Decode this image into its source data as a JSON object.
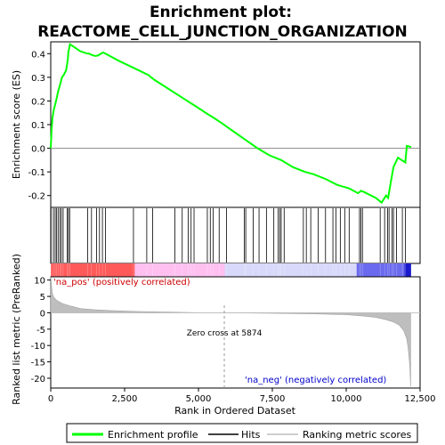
{
  "chart_data": {
    "type": "line",
    "title_line1": "Enrichment plot:",
    "title_line2": "REACTOME_CELL_JUNCTION_ORGANIZATION",
    "top_panel": {
      "ylabel": "Enrichment score (ES)",
      "ylim": [
        -0.25,
        0.45
      ],
      "yticks": [
        "0.4",
        "0.3",
        "0.2",
        "0.1",
        "0.0",
        "-0.1",
        "-0.2"
      ],
      "ytick_values": [
        0.4,
        0.3,
        0.2,
        0.1,
        0.0,
        -0.1,
        -0.2
      ],
      "series": [
        {
          "name": "Enrichment profile",
          "color": "#00ff00",
          "x": [
            0,
            30,
            60,
            100,
            180,
            250,
            320,
            380,
            440,
            520,
            560,
            580,
            600,
            620,
            650,
            1000,
            1250,
            1300,
            1380,
            1500,
            1600,
            1700,
            1780,
            1850,
            2000,
            2300,
            2800,
            3300,
            3500,
            4000,
            4500,
            5000,
            5300,
            5500,
            5800,
            6200,
            6600,
            7000,
            7400,
            7800,
            8200,
            8600,
            8900,
            9300,
            9700,
            10100,
            10400,
            10500,
            10600,
            11000,
            11200,
            11350,
            11420,
            11500,
            11600,
            11750,
            12000,
            12050,
            12200
          ],
          "y": [
            0.0,
            0.08,
            0.13,
            0.16,
            0.2,
            0.24,
            0.27,
            0.3,
            0.31,
            0.33,
            0.36,
            0.38,
            0.41,
            0.42,
            0.44,
            0.41,
            0.4,
            0.4,
            0.395,
            0.39,
            0.392,
            0.4,
            0.405,
            0.4,
            0.39,
            0.37,
            0.34,
            0.31,
            0.29,
            0.25,
            0.21,
            0.17,
            0.145,
            0.13,
            0.105,
            0.07,
            0.035,
            0.0,
            -0.03,
            -0.05,
            -0.08,
            -0.1,
            -0.11,
            -0.13,
            -0.155,
            -0.17,
            -0.19,
            -0.18,
            -0.185,
            -0.21,
            -0.23,
            -0.2,
            -0.21,
            -0.15,
            -0.08,
            -0.04,
            -0.06,
            0.01,
            0.005
          ]
        }
      ]
    },
    "hits": [
      10,
      90,
      150,
      200,
      250,
      310,
      360,
      420,
      560,
      600,
      640,
      1250,
      1380,
      1550,
      1650,
      1750,
      1850,
      2800,
      3250,
      3450,
      4200,
      4450,
      4650,
      4750,
      4850,
      5300,
      5400,
      5500,
      5700,
      5950,
      6550,
      6600,
      6850,
      7050,
      7300,
      7550,
      7700,
      7750,
      7800,
      7900,
      8550,
      8650,
      8800,
      9050,
      9300,
      9550,
      9650,
      9800,
      9950,
      10100,
      10450,
      10500,
      10550,
      11150,
      11300,
      11400,
      11450,
      11550,
      11600,
      11700,
      11900,
      12000
    ],
    "middle_band_colors": [
      "#ff0000",
      "#ff66ff",
      "#dcdcff",
      "#0000cc"
    ],
    "bottom_panel": {
      "ylabel": "Ranked list metric (PreRanked)",
      "ylim": [
        -23,
        11
      ],
      "yticks": [
        "10",
        "5",
        "0",
        "-5",
        "-10",
        "-15",
        "-20"
      ],
      "ytick_values": [
        10,
        5,
        0,
        -5,
        -10,
        -15,
        -20
      ],
      "metric_x": [
        0,
        50,
        100,
        200,
        400,
        700,
        1000,
        1500,
        2000,
        3000,
        4000,
        5000,
        5874,
        7000,
        8000,
        9000,
        10000,
        10500,
        11000,
        11300,
        11600,
        11800,
        11950,
        12050,
        12100,
        12150,
        12180
      ],
      "metric_y": [
        11.0,
        6.0,
        4.8,
        3.8,
        2.8,
        2.0,
        1.3,
        0.9,
        0.7,
        0.4,
        0.2,
        0.05,
        0.0,
        -0.1,
        -0.2,
        -0.35,
        -0.6,
        -0.9,
        -1.4,
        -2.0,
        -2.8,
        -3.8,
        -5.5,
        -8.0,
        -11.0,
        -16.0,
        -22.5
      ],
      "label_pos": "'na_pos' (positively correlated)",
      "label_neg": "'na_neg' (negatively correlated)",
      "zero_cross_label": "Zero cross at 5874",
      "zero_cross": 5874
    },
    "xlabel": "Rank in Ordered Dataset",
    "xlim": [
      0,
      12500
    ],
    "xticks": [
      "0",
      "2,500",
      "5,000",
      "7,500",
      "10,000",
      "12,500"
    ],
    "xtick_values": [
      0,
      2500,
      5000,
      7500,
      10000,
      12500
    ],
    "legend": {
      "placement": "bottom",
      "items": [
        {
          "label": "Enrichment profile",
          "color": "#00ff00"
        },
        {
          "label": "Hits",
          "color": "#000000"
        },
        {
          "label": "Ranking metric scores",
          "color": "#bebebe"
        }
      ]
    }
  }
}
